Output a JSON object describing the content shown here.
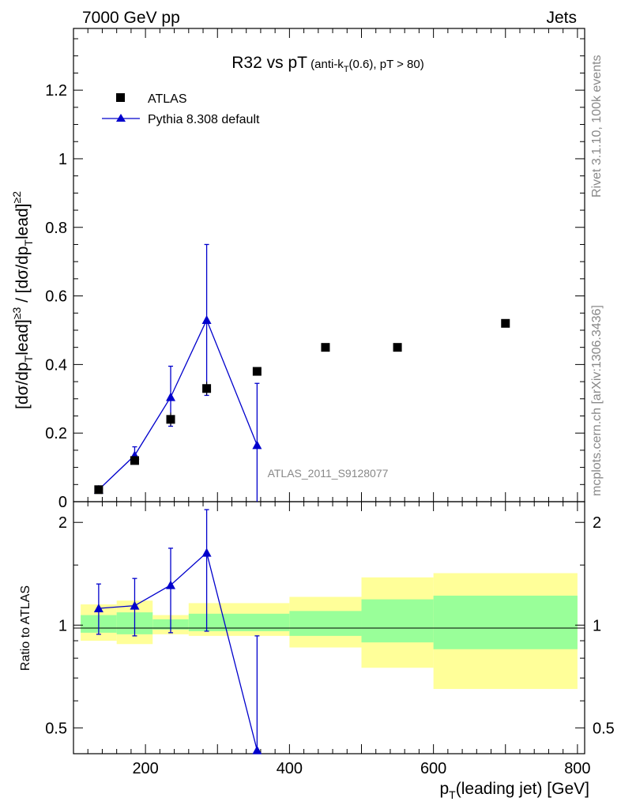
{
  "header": {
    "left": "7000 GeV pp",
    "right": "Jets"
  },
  "side": {
    "rivet": "Rivet 3.1.10,  100k events",
    "mcplots": "mcplots.cern.ch [arXiv:1306.3436]"
  },
  "colors": {
    "data": "#000000",
    "mc": "#0000cc",
    "band_inner": "#99ff99",
    "band_outer": "#ffff99"
  },
  "chart_data": [
    {
      "type": "scatter",
      "title": "R32 vs pT (anti-kT(0.6), pT > 80)",
      "ylabel": "[dσ/dpTlead]≥3 / [dσ/dpTlead]≥2",
      "xlim": [
        100,
        810
      ],
      "ylim": [
        0,
        1.38
      ],
      "yticks": [
        "0",
        "0.2",
        "0.4",
        "0.6",
        "0.8",
        "1",
        "1.2"
      ],
      "legend": [
        "ATLAS",
        "Pythia 8.308 default"
      ],
      "legend_position": "top-left",
      "analysis_label": "ATLAS_2011_S9128077",
      "series": [
        {
          "name": "ATLAS",
          "marker": "square",
          "x": [
            135,
            185,
            235,
            285,
            355,
            450,
            550,
            700
          ],
          "y": [
            0.035,
            0.12,
            0.24,
            0.33,
            0.38,
            0.45,
            0.45,
            0.52
          ],
          "yerr": [
            0.005,
            0.008,
            0.02,
            0.02,
            0.01,
            0.01,
            0.01,
            0.01
          ]
        },
        {
          "name": "Pythia 8.308 default",
          "marker": "triangle",
          "x": [
            135,
            185,
            235,
            285,
            355
          ],
          "y": [
            0.035,
            0.135,
            0.305,
            0.53,
            0.165
          ],
          "ylow": [
            0.03,
            0.11,
            0.22,
            0.31,
            0.0
          ],
          "yhigh": [
            0.04,
            0.16,
            0.395,
            0.75,
            0.345
          ]
        }
      ]
    },
    {
      "type": "line",
      "ylabel": "Ratio to ATLAS",
      "xlabel": "pT(leading jet) [GeV]",
      "xlim": [
        100,
        810
      ],
      "ylim": [
        0.42,
        2.3
      ],
      "log_y": true,
      "xticks": [
        "200",
        "400",
        "600",
        "800"
      ],
      "yticks": [
        "0.5",
        "1",
        "2"
      ],
      "bands": {
        "edges": [
          110,
          160,
          210,
          260,
          400,
          500,
          600,
          800
        ],
        "outer_low": [
          0.9,
          0.88,
          0.94,
          0.93,
          0.86,
          0.75,
          0.65,
          0.65
        ],
        "outer_high": [
          1.15,
          1.18,
          1.07,
          1.16,
          1.21,
          1.38,
          1.42,
          1.42
        ],
        "inner_low": [
          0.95,
          0.94,
          0.97,
          0.96,
          0.93,
          0.89,
          0.85,
          0.85
        ],
        "inner_high": [
          1.07,
          1.09,
          1.04,
          1.08,
          1.1,
          1.19,
          1.22,
          1.22
        ]
      },
      "series": [
        {
          "name": "Pythia 8.308 default",
          "x": [
            135,
            185,
            235,
            285,
            355
          ],
          "y": [
            1.12,
            1.14,
            1.31,
            1.63,
            0.43
          ],
          "ylow": [
            0.94,
            0.93,
            0.95,
            0.96,
            0.0
          ],
          "yhigh": [
            1.32,
            1.37,
            1.68,
            2.18,
            0.93
          ]
        }
      ]
    }
  ]
}
